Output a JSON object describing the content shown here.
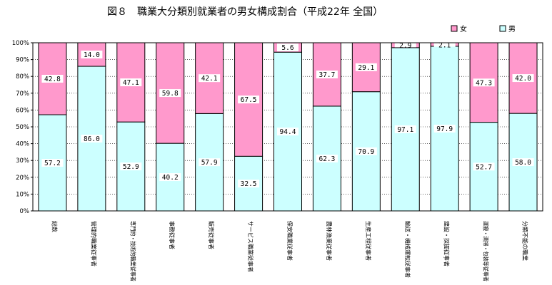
{
  "chart_data": {
    "type": "bar",
    "stacked": true,
    "title": "図８　職業大分類別就業者の男女構成割合（平成22年 全国）",
    "xlabel": "",
    "ylabel": "",
    "ylim": [
      0,
      100
    ],
    "y_ticks": [
      "0%",
      "10%",
      "20%",
      "30%",
      "40%",
      "50%",
      "60%",
      "70%",
      "80%",
      "90%",
      "100%"
    ],
    "grid": "horizontal dotted",
    "legend_position": "top-right",
    "categories": [
      "総数",
      "管理的職業従事者",
      "専門的・技術的職業従事者",
      "事務従事者",
      "販売従事者",
      "サービス職業従事者",
      "保安職業従事者",
      "農林漁業従事者",
      "生産工程従事者",
      "輸送・機械運転従事者",
      "建設・採掘従事者",
      "運搬・清掃・包装等従事者",
      "分類不能の職業"
    ],
    "series": [
      {
        "name": "男",
        "color": "#ccffff",
        "values": [
          57.2,
          86.0,
          52.9,
          40.2,
          57.9,
          32.5,
          94.4,
          62.3,
          70.9,
          97.1,
          97.9,
          52.7,
          58.0
        ],
        "labels": [
          "57.2",
          "86.0",
          "52.9",
          "40.2",
          "57.9",
          "32.5",
          "94.4",
          "62.3",
          "70.9",
          "97.1",
          "97.9",
          "52.7",
          "58.0"
        ]
      },
      {
        "name": "女",
        "color": "#ff99cc",
        "values": [
          42.8,
          14.0,
          47.1,
          59.8,
          42.1,
          67.5,
          5.6,
          37.7,
          29.1,
          2.9,
          2.1,
          47.3,
          42.0
        ],
        "labels": [
          "42.8",
          "14.0",
          "47.1",
          "59.8",
          "42.1",
          "67.5",
          "5.6",
          "37.7",
          "29.1",
          "2.9",
          "2.1",
          "47.3",
          "42.0"
        ]
      }
    ],
    "legend_order": [
      "女",
      "男"
    ]
  }
}
